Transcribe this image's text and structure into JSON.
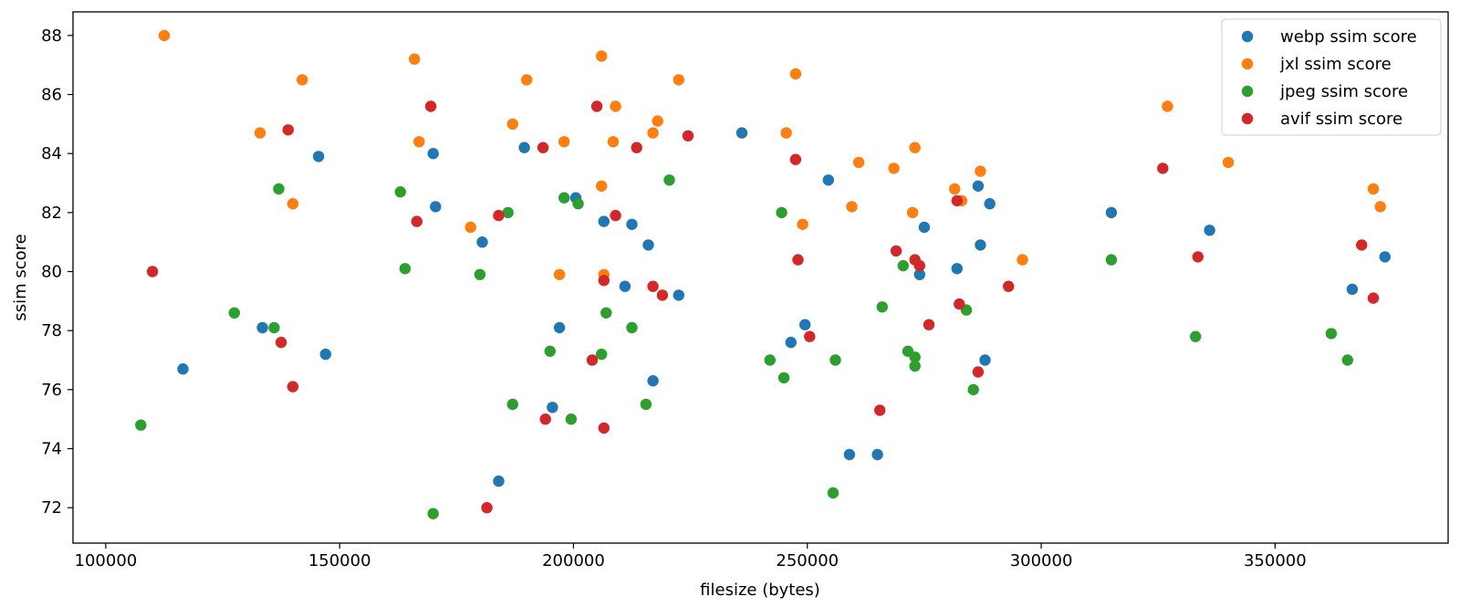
{
  "chart_data": {
    "type": "scatter",
    "xlabel": "filesize (bytes)",
    "ylabel": "ssim score",
    "xlim": [
      93000,
      387000
    ],
    "ylim": [
      70.8,
      88.8
    ],
    "xticks": [
      100000,
      150000,
      200000,
      250000,
      300000,
      350000
    ],
    "xtick_labels": [
      "100000",
      "150000",
      "200000",
      "250000",
      "300000",
      "350000"
    ],
    "yticks": [
      72,
      74,
      76,
      78,
      80,
      82,
      84,
      86,
      88
    ],
    "ytick_labels": [
      "72",
      "74",
      "76",
      "78",
      "80",
      "82",
      "84",
      "86",
      "88"
    ],
    "grid": false,
    "legend_position": "top-right",
    "series": [
      {
        "name": "webp ssim score",
        "color": "#1f77b4",
        "points": [
          [
            116500,
            76.7
          ],
          [
            133500,
            78.1
          ],
          [
            145500,
            83.9
          ],
          [
            147000,
            77.2
          ],
          [
            170000,
            84.0
          ],
          [
            170500,
            82.2
          ],
          [
            180500,
            81.0
          ],
          [
            184000,
            72.9
          ],
          [
            189500,
            84.2
          ],
          [
            195500,
            75.4
          ],
          [
            197000,
            78.1
          ],
          [
            200500,
            82.5
          ],
          [
            206500,
            81.7
          ],
          [
            211000,
            79.5
          ],
          [
            212500,
            81.6
          ],
          [
            216000,
            80.9
          ],
          [
            217000,
            76.3
          ],
          [
            222500,
            79.2
          ],
          [
            236000,
            84.7
          ],
          [
            246500,
            77.6
          ],
          [
            249500,
            78.2
          ],
          [
            254500,
            83.1
          ],
          [
            259000,
            73.8
          ],
          [
            265000,
            73.8
          ],
          [
            274000,
            79.9
          ],
          [
            275000,
            81.5
          ],
          [
            282000,
            80.1
          ],
          [
            286500,
            82.9
          ],
          [
            287000,
            80.9
          ],
          [
            288000,
            77.0
          ],
          [
            289000,
            82.3
          ],
          [
            315000,
            82.0
          ],
          [
            336000,
            81.4
          ],
          [
            366500,
            79.4
          ],
          [
            373500,
            80.5
          ]
        ]
      },
      {
        "name": "jxl ssim score",
        "color": "#ff7f0e",
        "points": [
          [
            112500,
            88.0
          ],
          [
            133000,
            84.7
          ],
          [
            140000,
            82.3
          ],
          [
            142000,
            86.5
          ],
          [
            166000,
            87.2
          ],
          [
            167000,
            84.4
          ],
          [
            178000,
            81.5
          ],
          [
            187000,
            85.0
          ],
          [
            190000,
            86.5
          ],
          [
            197000,
            79.9
          ],
          [
            198000,
            84.4
          ],
          [
            206000,
            87.3
          ],
          [
            206000,
            82.9
          ],
          [
            206500,
            79.9
          ],
          [
            208500,
            84.4
          ],
          [
            209000,
            85.6
          ],
          [
            217000,
            84.7
          ],
          [
            218000,
            85.1
          ],
          [
            222500,
            86.5
          ],
          [
            245500,
            84.7
          ],
          [
            247500,
            86.7
          ],
          [
            249000,
            81.6
          ],
          [
            259500,
            82.2
          ],
          [
            261000,
            83.7
          ],
          [
            268500,
            83.5
          ],
          [
            272500,
            82.0
          ],
          [
            273000,
            84.2
          ],
          [
            281500,
            82.8
          ],
          [
            283000,
            82.4
          ],
          [
            287000,
            83.4
          ],
          [
            296000,
            80.4
          ],
          [
            327000,
            85.6
          ],
          [
            340000,
            83.7
          ],
          [
            371000,
            82.8
          ],
          [
            372500,
            82.2
          ]
        ]
      },
      {
        "name": "jpeg ssim score",
        "color": "#2ca02c",
        "points": [
          [
            107500,
            74.8
          ],
          [
            127500,
            78.6
          ],
          [
            136000,
            78.1
          ],
          [
            137000,
            82.8
          ],
          [
            163000,
            82.7
          ],
          [
            164000,
            80.1
          ],
          [
            170000,
            71.8
          ],
          [
            180000,
            79.9
          ],
          [
            186000,
            82.0
          ],
          [
            187000,
            75.5
          ],
          [
            195000,
            77.3
          ],
          [
            198000,
            82.5
          ],
          [
            199500,
            75.0
          ],
          [
            201000,
            82.3
          ],
          [
            206000,
            77.2
          ],
          [
            207000,
            78.6
          ],
          [
            212500,
            78.1
          ],
          [
            215500,
            75.5
          ],
          [
            220500,
            83.1
          ],
          [
            242000,
            77.0
          ],
          [
            244500,
            82.0
          ],
          [
            245000,
            76.4
          ],
          [
            255500,
            72.5
          ],
          [
            256000,
            77.0
          ],
          [
            266000,
            78.8
          ],
          [
            270500,
            80.2
          ],
          [
            271500,
            77.3
          ],
          [
            273000,
            77.1
          ],
          [
            273000,
            76.8
          ],
          [
            284000,
            78.7
          ],
          [
            285500,
            76.0
          ],
          [
            315000,
            80.4
          ],
          [
            333000,
            77.8
          ],
          [
            362000,
            77.9
          ],
          [
            365500,
            77.0
          ]
        ]
      },
      {
        "name": "avif ssim score",
        "color": "#d62728",
        "points": [
          [
            110000,
            80.0
          ],
          [
            137500,
            77.6
          ],
          [
            139000,
            84.8
          ],
          [
            140000,
            76.1
          ],
          [
            166500,
            81.7
          ],
          [
            169500,
            85.6
          ],
          [
            181500,
            72.0
          ],
          [
            184000,
            81.9
          ],
          [
            193500,
            84.2
          ],
          [
            194000,
            75.0
          ],
          [
            204000,
            77.0
          ],
          [
            205000,
            85.6
          ],
          [
            206500,
            74.7
          ],
          [
            206500,
            79.7
          ],
          [
            209000,
            81.9
          ],
          [
            213500,
            84.2
          ],
          [
            217000,
            79.5
          ],
          [
            219000,
            79.2
          ],
          [
            224500,
            84.6
          ],
          [
            247500,
            83.8
          ],
          [
            248000,
            80.4
          ],
          [
            250500,
            77.8
          ],
          [
            265500,
            75.3
          ],
          [
            269000,
            80.7
          ],
          [
            273000,
            80.4
          ],
          [
            274000,
            80.2
          ],
          [
            276000,
            78.2
          ],
          [
            282000,
            82.4
          ],
          [
            282500,
            78.9
          ],
          [
            286500,
            76.6
          ],
          [
            293000,
            79.5
          ],
          [
            326000,
            83.5
          ],
          [
            333500,
            80.5
          ],
          [
            368500,
            80.9
          ],
          [
            371000,
            79.1
          ]
        ]
      }
    ]
  }
}
